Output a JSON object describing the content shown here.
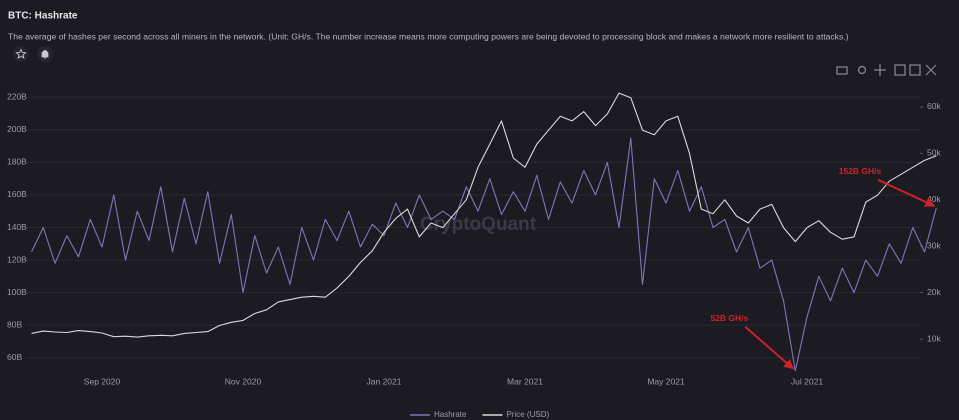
{
  "chart_data": {
    "type": "line",
    "title": "BTC: Hashrate",
    "subtitle": "The average of hashes per second across all miners in the network. (Unit: GH/s. The number increase means more computing powers are being devoted to processing block and makes a network more resilient to attacks.)",
    "watermark": "CryptoQuant",
    "categories": [
      null,
      null,
      null,
      null,
      null,
      null,
      "Sep 2020",
      null,
      null,
      null,
      null,
      null,
      null,
      null,
      null,
      null,
      null,
      null,
      "Nov 2020",
      null,
      null,
      null,
      null,
      null,
      null,
      null,
      null,
      null,
      null,
      null,
      "Jan 2021",
      null,
      null,
      null,
      null,
      null,
      null,
      null,
      null,
      null,
      null,
      null,
      "Mar 2021",
      null,
      null,
      null,
      null,
      null,
      null,
      null,
      null,
      null,
      null,
      null,
      "May 2021",
      null,
      null,
      null,
      null,
      null,
      null,
      null,
      null,
      null,
      null,
      null,
      "Jul 2021",
      null,
      null,
      null,
      null,
      null,
      null,
      null,
      null,
      null,
      null,
      null
    ],
    "series": [
      {
        "name": "Hashrate",
        "color": "#7d76bd",
        "values": [
          125,
          140,
          118,
          135,
          122,
          145,
          128,
          160,
          120,
          150,
          132,
          165,
          125,
          158,
          130,
          162,
          118,
          148,
          100,
          135,
          112,
          128,
          105,
          140,
          120,
          145,
          132,
          150,
          128,
          142,
          135,
          155,
          140,
          160,
          145,
          150,
          145,
          165,
          150,
          170,
          148,
          162,
          150,
          172,
          145,
          168,
          155,
          175,
          160,
          180,
          140,
          195,
          105,
          170,
          155,
          175,
          150,
          165,
          140,
          145,
          125,
          140,
          115,
          120,
          95,
          52,
          85,
          110,
          95,
          115,
          100,
          120,
          110,
          130,
          118,
          140,
          125,
          152
        ]
      },
      {
        "name": "Price (USD)",
        "color": "#d9d9de",
        "axis": "y2",
        "values": [
          11200,
          11700,
          11500,
          11400,
          11800,
          11600,
          11300,
          10500,
          10600,
          10400,
          10700,
          10800,
          10700,
          11200,
          11400,
          11600,
          12900,
          13600,
          14000,
          15500,
          16300,
          18000,
          18500,
          19000,
          19200,
          19000,
          21000,
          23500,
          26500,
          29000,
          33000,
          36000,
          38000,
          32000,
          35000,
          34000,
          37000,
          40000,
          47000,
          52000,
          57000,
          49000,
          47000,
          52000,
          55000,
          58000,
          57000,
          59000,
          56000,
          58500,
          63000,
          62000,
          55000,
          54000,
          57000,
          58000,
          50000,
          38000,
          37000,
          40000,
          36500,
          35000,
          38000,
          39000,
          34000,
          31000,
          34000,
          35500,
          33000,
          31500,
          32000,
          39500,
          41000,
          44000,
          45500,
          47000,
          48500,
          49500
        ]
      }
    ],
    "ylim": [
      50,
      230
    ],
    "yticks": [
      {
        "value": 60,
        "label": "60B"
      },
      {
        "value": 80,
        "label": "80B"
      },
      {
        "value": 100,
        "label": "100B"
      },
      {
        "value": 120,
        "label": "120B"
      },
      {
        "value": 140,
        "label": "140B"
      },
      {
        "value": 160,
        "label": "160B"
      },
      {
        "value": 180,
        "label": "180B"
      },
      {
        "value": 200,
        "label": "200B"
      },
      {
        "value": 220,
        "label": "220B"
      }
    ],
    "y2lim": [
      2457,
      65603
    ],
    "y2ticks": [
      {
        "value": 10000,
        "label": "10k"
      },
      {
        "value": 20000,
        "label": "20k"
      },
      {
        "value": 30000,
        "label": "30k"
      },
      {
        "value": 40000,
        "label": "40k"
      },
      {
        "value": 50000,
        "label": "50k"
      },
      {
        "value": 60000,
        "label": "60k"
      }
    ],
    "grid": true,
    "annotations": [
      {
        "text": "52B GH/s",
        "color": "#d0202a"
      },
      {
        "text": "152B GH/s",
        "color": "#d0202a"
      }
    ]
  }
}
